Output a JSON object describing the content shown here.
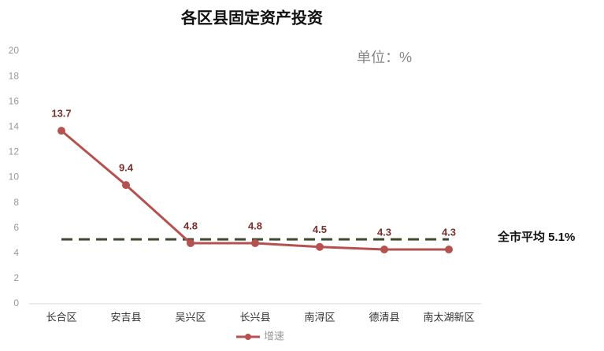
{
  "chart_data": {
    "type": "line",
    "title": "各区县固定资产投资",
    "unit": "单位：%",
    "categories": [
      "长合区",
      "安吉县",
      "吴兴区",
      "长兴县",
      "南浔区",
      "德清县",
      "南太湖新区"
    ],
    "series": [
      {
        "name": "增速",
        "color": "#b5524f",
        "values": [
          13.7,
          9.4,
          4.8,
          4.8,
          4.5,
          4.3,
          4.3
        ]
      }
    ],
    "ylim": [
      0,
      20
    ],
    "yticks": [
      0,
      2,
      4,
      6,
      8,
      10,
      12,
      14,
      16,
      18,
      20
    ],
    "reference_line": {
      "value": 5.1,
      "label": "全市平均 5.1%",
      "color": "#3e4a2f"
    },
    "legend": "bottom"
  }
}
